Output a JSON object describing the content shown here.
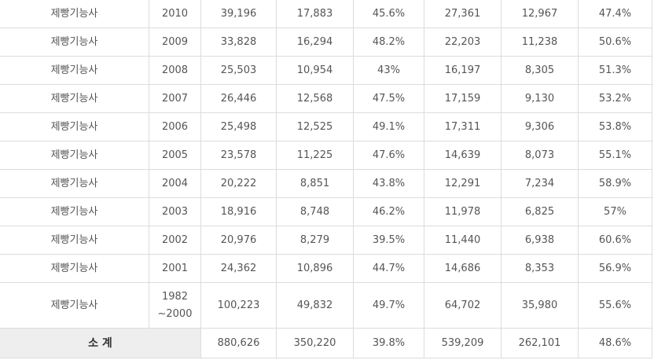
{
  "rows": [
    {
      "name": "제빵기능사",
      "year": "2010",
      "c1": "39,196",
      "c2": "17,883",
      "c3": "45.6%",
      "c4": "27,361",
      "c5": "12,967",
      "c6": "47.4%"
    },
    {
      "name": "제빵기능사",
      "year": "2009",
      "c1": "33,828",
      "c2": "16,294",
      "c3": "48.2%",
      "c4": "22,203",
      "c5": "11,238",
      "c6": "50.6%"
    },
    {
      "name": "제빵기능사",
      "year": "2008",
      "c1": "25,503",
      "c2": "10,954",
      "c3": "43%",
      "c4": "16,197",
      "c5": "8,305",
      "c6": "51.3%"
    },
    {
      "name": "제빵기능사",
      "year": "2007",
      "c1": "26,446",
      "c2": "12,568",
      "c3": "47.5%",
      "c4": "17,159",
      "c5": "9,130",
      "c6": "53.2%"
    },
    {
      "name": "제빵기능사",
      "year": "2006",
      "c1": "25,498",
      "c2": "12,525",
      "c3": "49.1%",
      "c4": "17,311",
      "c5": "9,306",
      "c6": "53.8%"
    },
    {
      "name": "제빵기능사",
      "year": "2005",
      "c1": "23,578",
      "c2": "11,225",
      "c3": "47.6%",
      "c4": "14,639",
      "c5": "8,073",
      "c6": "55.1%"
    },
    {
      "name": "제빵기능사",
      "year": "2004",
      "c1": "20,222",
      "c2": "8,851",
      "c3": "43.8%",
      "c4": "12,291",
      "c5": "7,234",
      "c6": "58.9%"
    },
    {
      "name": "제빵기능사",
      "year": "2003",
      "c1": "18,916",
      "c2": "8,748",
      "c3": "46.2%",
      "c4": "11,978",
      "c5": "6,825",
      "c6": "57%"
    },
    {
      "name": "제빵기능사",
      "year": "2002",
      "c1": "20,976",
      "c2": "8,279",
      "c3": "39.5%",
      "c4": "11,440",
      "c5": "6,938",
      "c6": "60.6%"
    },
    {
      "name": "제빵기능사",
      "year": "2001",
      "c1": "24,362",
      "c2": "10,896",
      "c3": "44.7%",
      "c4": "14,686",
      "c5": "8,353",
      "c6": "56.9%"
    }
  ],
  "range_row": {
    "name": "제빵기능사",
    "year_line1": "1982",
    "year_line2": "~2000",
    "c1": "100,223",
    "c2": "49,832",
    "c3": "49.7%",
    "c4": "64,702",
    "c5": "35,980",
    "c6": "55.6%"
  },
  "total": {
    "label": "소 계",
    "c1": "880,626",
    "c2": "350,220",
    "c3": "39.8%",
    "c4": "539,209",
    "c5": "262,101",
    "c6": "48.6%"
  }
}
